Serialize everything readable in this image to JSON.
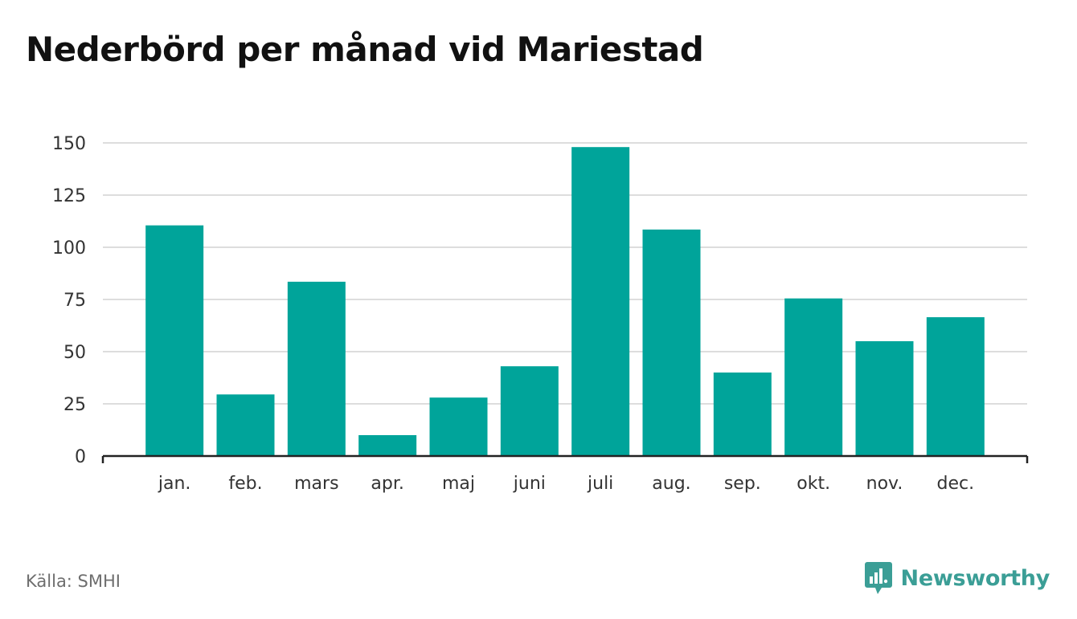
{
  "title": "Nederbörd per månad vid Mariestad",
  "source": "Källa: SMHI",
  "brand": {
    "name": "Newsworthy",
    "icon": "newsworthy-logo-icon",
    "color": "#3b9e96"
  },
  "chart_data": {
    "type": "bar",
    "title": "Nederbörd per månad vid Mariestad",
    "xlabel": "",
    "ylabel": "",
    "categories": [
      "jan.",
      "feb.",
      "mars",
      "apr.",
      "maj",
      "juni",
      "juli",
      "aug.",
      "sep.",
      "okt.",
      "nov.",
      "dec."
    ],
    "values": [
      110.5,
      29.5,
      83.5,
      10,
      28,
      43,
      148,
      108.5,
      40,
      75.5,
      55,
      66.5
    ],
    "ylim": [
      0,
      150
    ],
    "yticks": [
      0,
      25,
      50,
      75,
      100,
      125,
      150
    ],
    "grid": true,
    "legend": "none",
    "bar_color": "#00a49a",
    "grid_color": "#dddddd",
    "axis_color": "#222222"
  }
}
